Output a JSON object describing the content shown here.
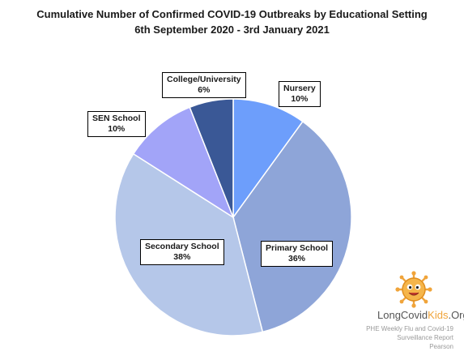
{
  "chart_data": {
    "type": "pie",
    "title": "Cumulative Number of Confirmed COVID-19 Outbreaks by Educational Setting",
    "subtitle": "6th September 2020 - 3rd January 2021",
    "slices": [
      {
        "label": "Nursery",
        "value": 10,
        "value_label": "10%",
        "color": "#6d9efb"
      },
      {
        "label": "Primary School",
        "value": 36,
        "value_label": "36%",
        "color": "#8ea5d8"
      },
      {
        "label": "Secondary School",
        "value": 38,
        "value_label": "38%",
        "color": "#b5c7e9"
      },
      {
        "label": "SEN School",
        "value": 10,
        "value_label": "10%",
        "color": "#a2a4f8"
      },
      {
        "label": "College/University",
        "value": 6,
        "value_label": "6%",
        "color": "#3a5896"
      }
    ],
    "legend": "none"
  },
  "logo": {
    "text_long": "LongCovid",
    "text_kids": "Kids",
    "text_org": ".Org",
    "kids_color": "#f0a43a",
    "body_color": "#f0a43a",
    "mascot": "virus-mascot-icon"
  },
  "source_lines": [
    "PHE Weekly Flu and Covid-19",
    "Surveillance Report",
    "Pearson"
  ]
}
